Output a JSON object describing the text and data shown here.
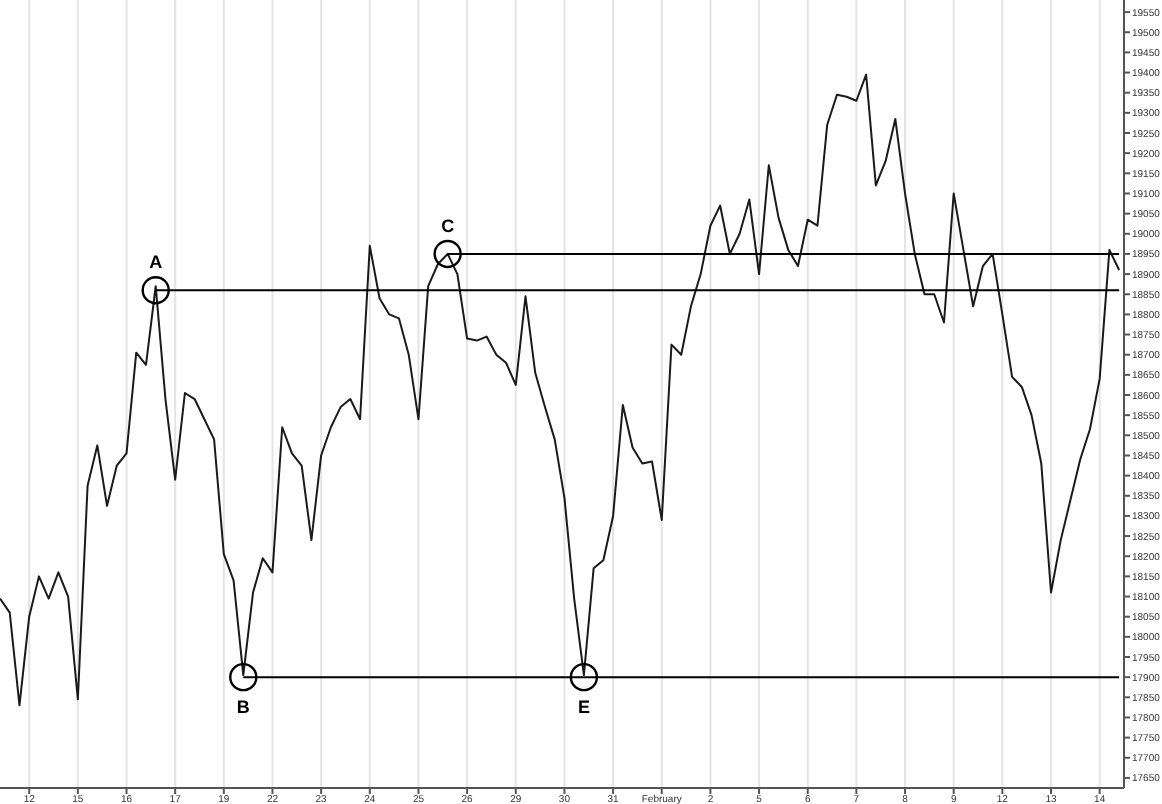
{
  "chart_data": {
    "type": "line",
    "categories": [
      null,
      null,
      null,
      "12",
      null,
      null,
      null,
      null,
      "15",
      null,
      null,
      null,
      null,
      "16",
      null,
      null,
      null,
      null,
      "17",
      null,
      null,
      null,
      null,
      "19",
      null,
      null,
      null,
      null,
      "22",
      null,
      null,
      null,
      null,
      "23",
      null,
      null,
      null,
      null,
      "24",
      null,
      null,
      null,
      null,
      "25",
      null,
      null,
      null,
      null,
      "26",
      null,
      null,
      null,
      null,
      "29",
      null,
      null,
      null,
      null,
      "30",
      null,
      null,
      null,
      null,
      "31",
      null,
      null,
      null,
      null,
      "February",
      null,
      null,
      null,
      null,
      "2",
      null,
      null,
      null,
      null,
      "5",
      null,
      null,
      null,
      null,
      "6",
      null,
      null,
      null,
      null,
      "7",
      null,
      null,
      null,
      null,
      "8",
      null,
      null,
      null,
      null,
      "9",
      null,
      null,
      null,
      null,
      "12",
      null,
      null,
      null,
      null,
      "13",
      null,
      null,
      null,
      null,
      "14",
      null,
      null
    ],
    "series": [
      {
        "color": "#1a1a1a",
        "values": [
          18095,
          18060,
          17830,
          18050,
          18150,
          18095,
          18160,
          18100,
          17845,
          18375,
          18475,
          18325,
          18425,
          18455,
          18705,
          18675,
          18870,
          18590,
          18390,
          18605,
          18590,
          18540,
          18490,
          18205,
          18140,
          17905,
          18110,
          18195,
          18160,
          18520,
          18455,
          18425,
          18240,
          18450,
          18520,
          18570,
          18590,
          18540,
          18970,
          18840,
          18800,
          18790,
          18700,
          18540,
          18870,
          18925,
          18950,
          18900,
          18740,
          18735,
          18745,
          18700,
          18680,
          18625,
          18845,
          18655,
          18570,
          18490,
          18345,
          18095,
          17905,
          18170,
          18190,
          18300,
          18575,
          18470,
          18430,
          18435,
          18290,
          18725,
          18700,
          18820,
          18900,
          19020,
          19070,
          18950,
          19000,
          19085,
          18900,
          19170,
          19040,
          18960,
          18920,
          19035,
          19020,
          19270,
          19345,
          19340,
          19330,
          19395,
          19120,
          19180,
          19285,
          19100,
          18950,
          18850,
          18850,
          18780,
          19100,
          18960,
          18820,
          18920,
          18950,
          18800,
          18645,
          18620,
          18550,
          18430,
          18110,
          18240,
          18340,
          18440,
          18515,
          18640,
          18960,
          18910
        ]
      },
      {
        "color": "#000000",
        "values": [
          null,
          null,
          null,
          null,
          null,
          null,
          null,
          null,
          null,
          null,
          null,
          null,
          null,
          null,
          null,
          null,
          18860,
          18860,
          18860,
          18860,
          18860,
          18860,
          18860,
          18860,
          18860,
          18860,
          18860,
          18860,
          18860,
          18860,
          18860,
          18860,
          18860,
          18860,
          18860,
          18860,
          18860,
          18860,
          18860,
          18860,
          18860,
          18860,
          18860,
          18860,
          18860,
          18860,
          18860,
          18860,
          18860,
          18860,
          18860,
          18860,
          18860,
          18860,
          18860,
          18860,
          18860,
          18860,
          18860,
          18860,
          18860,
          18860,
          18860,
          18860,
          18860,
          18860,
          18860,
          18860,
          18860,
          18860,
          18860,
          18860,
          18860,
          18860,
          18860,
          18860,
          18860,
          18860,
          18860,
          18860,
          18860,
          18860,
          18860,
          18860,
          18860,
          18860,
          18860,
          18860,
          18860,
          18860,
          18860,
          18860,
          18860,
          18860,
          18860,
          18860,
          18860,
          18860,
          18860,
          18860,
          18860,
          18860,
          18860,
          18860,
          18860,
          18860,
          18860,
          18860,
          18860,
          18860,
          18860,
          18860,
          18860,
          18860,
          18860,
          18860
        ]
      },
      {
        "color": "#000000",
        "values": [
          null,
          null,
          null,
          null,
          null,
          null,
          null,
          null,
          null,
          null,
          null,
          null,
          null,
          null,
          null,
          null,
          null,
          null,
          null,
          null,
          null,
          null,
          null,
          null,
          null,
          17900,
          17900,
          17900,
          17900,
          17900,
          17900,
          17900,
          17900,
          17900,
          17900,
          17900,
          17900,
          17900,
          17900,
          17900,
          17900,
          17900,
          17900,
          17900,
          17900,
          17900,
          17900,
          17900,
          17900,
          17900,
          17900,
          17900,
          17900,
          17900,
          17900,
          17900,
          17900,
          17900,
          17900,
          17900,
          17900,
          null,
          null,
          null,
          null,
          null,
          null,
          null,
          null,
          null,
          null,
          null,
          null,
          null,
          null,
          null,
          null,
          null,
          null,
          null,
          null,
          null,
          null,
          null,
          null,
          null,
          null,
          null,
          null,
          null,
          null,
          null,
          null,
          null,
          null,
          null,
          null,
          null,
          null,
          null,
          null,
          null,
          null,
          null,
          null,
          null,
          null,
          null,
          null,
          null,
          null,
          null,
          null,
          null,
          null,
          null
        ]
      },
      {
        "color": "#000000",
        "values": [
          null,
          null,
          null,
          null,
          null,
          null,
          null,
          null,
          null,
          null,
          null,
          null,
          null,
          null,
          null,
          null,
          null,
          null,
          null,
          null,
          null,
          null,
          null,
          null,
          null,
          null,
          null,
          null,
          null,
          null,
          null,
          null,
          null,
          null,
          null,
          null,
          null,
          null,
          null,
          null,
          null,
          null,
          null,
          null,
          null,
          null,
          18950,
          18950,
          18950,
          18950,
          18950,
          18950,
          18950,
          18950,
          18950,
          18950,
          18950,
          18950,
          18950,
          18950,
          18950,
          18950,
          18950,
          18950,
          18950,
          18950,
          18950,
          18950,
          18950,
          18950,
          18950,
          18950,
          18950,
          18950,
          18950,
          18950,
          18950,
          18950,
          18950,
          18950,
          18950,
          18950,
          18950,
          18950,
          18950,
          18950,
          18950,
          18950,
          18950,
          18950,
          18950,
          18950,
          18950,
          18950,
          18950,
          18950,
          18950,
          18950,
          18950,
          18950,
          18950,
          18950,
          18950,
          18950,
          18950,
          18950,
          18950,
          18950,
          18950,
          18950,
          18950,
          18950,
          18950,
          18950,
          18950,
          18950
        ]
      },
      {
        "color": "#000000",
        "values": [
          null,
          null,
          null,
          null,
          null,
          null,
          null,
          null,
          null,
          null,
          null,
          null,
          null,
          null,
          null,
          null,
          null,
          null,
          null,
          null,
          null,
          null,
          null,
          null,
          null,
          null,
          null,
          null,
          null,
          null,
          null,
          null,
          null,
          null,
          null,
          null,
          null,
          null,
          null,
          null,
          null,
          null,
          null,
          null,
          null,
          null,
          null,
          null,
          null,
          null,
          null,
          null,
          null,
          null,
          null,
          null,
          null,
          null,
          null,
          null,
          17900,
          17900,
          17900,
          17900,
          17900,
          17900,
          17900,
          17900,
          17900,
          17900,
          17900,
          17900,
          17900,
          17900,
          17900,
          17900,
          17900,
          17900,
          17900,
          17900,
          17900,
          17900,
          17900,
          17900,
          17900,
          17900,
          17900,
          17900,
          17900,
          17900,
          17900,
          17900,
          17900,
          17900,
          17900,
          17900,
          17900,
          17900,
          17900,
          17900,
          17900,
          17900,
          17900,
          17900,
          17900,
          17900,
          17900,
          17900,
          17900,
          17900,
          17900,
          17900,
          17900,
          17900,
          17900,
          17900
        ]
      }
    ],
    "annotations": [
      {
        "text": "A",
        "y": 18860
      },
      {
        "text": "B",
        "y": 17900
      },
      {
        "text": "C",
        "y": 18950
      },
      {
        "text": "E",
        "y": 17900
      }
    ],
    "ylim": [
      17625,
      19580
    ],
    "yticks": [
      17650,
      17700,
      17750,
      17800,
      17850,
      17900,
      17950,
      18000,
      18050,
      18100,
      18150,
      18200,
      18250,
      18300,
      18350,
      18400,
      18450,
      18500,
      18550,
      18600,
      18650,
      18700,
      18750,
      18800,
      18850,
      18900,
      18950,
      19000,
      19050,
      19100,
      19150,
      19200,
      19250,
      19300,
      19350,
      19400,
      19450,
      19500,
      19550
    ],
    "grid": "x",
    "line_style": "solid",
    "marker": "none"
  }
}
